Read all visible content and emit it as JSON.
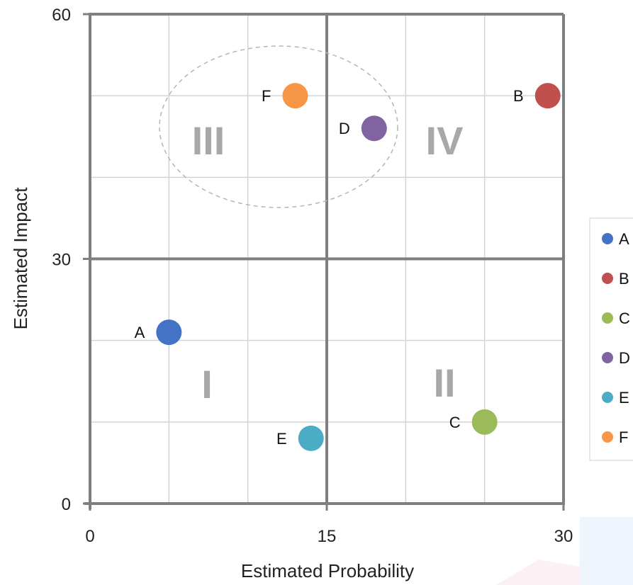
{
  "chart_data": {
    "type": "scatter",
    "xlabel": "Estimated Probability",
    "ylabel": "Estimated Impact",
    "xlim": [
      0,
      30
    ],
    "ylim": [
      0,
      60
    ],
    "x_ticks": [
      "0",
      "15",
      "30"
    ],
    "y_ticks": [
      "0",
      "30",
      "60"
    ],
    "grid": true,
    "legend_position": "right",
    "quadrant_labels": [
      "I",
      "II",
      "III",
      "IV"
    ],
    "series": [
      {
        "name": "A",
        "x": 5,
        "y": 21,
        "color": "#4472c4"
      },
      {
        "name": "B",
        "x": 29,
        "y": 50,
        "color": "#c0504d"
      },
      {
        "name": "C",
        "x": 25,
        "y": 10,
        "color": "#9bbb59"
      },
      {
        "name": "D",
        "x": 18,
        "y": 46,
        "color": "#8064a2"
      },
      {
        "name": "E",
        "x": 14,
        "y": 8,
        "color": "#4bacc6"
      },
      {
        "name": "F",
        "x": 13,
        "y": 50,
        "color": "#f79646"
      }
    ]
  }
}
